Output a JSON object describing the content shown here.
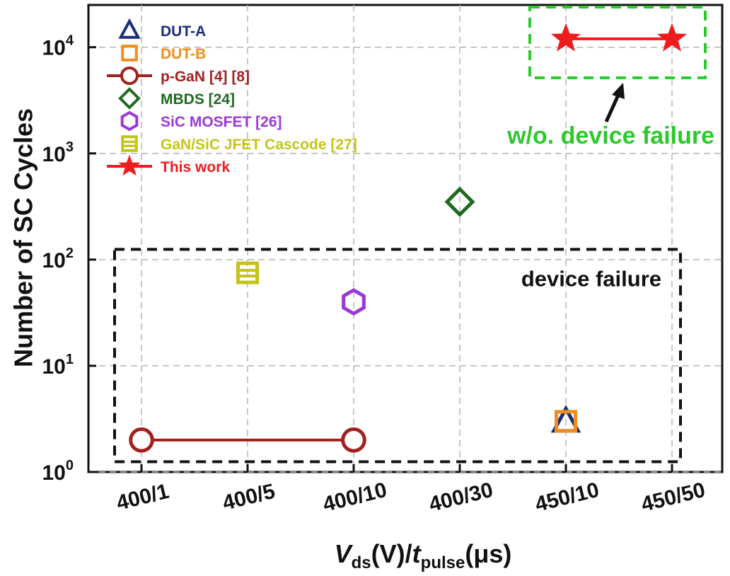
{
  "chart_data": {
    "type": "scatter",
    "ylabel": "Number of SC Cycles",
    "xlabel_parts": {
      "v": "V",
      "ds": "ds",
      "mid": "(V)/",
      "t": "t",
      "pulse": "pulse",
      "end": "(μs)"
    },
    "y_scale": "log",
    "ylim": [
      1,
      25000
    ],
    "y_ticks": [
      {
        "value": 1,
        "base": "10",
        "exp": "0"
      },
      {
        "value": 10,
        "base": "10",
        "exp": "1"
      },
      {
        "value": 100,
        "base": "10",
        "exp": "2"
      },
      {
        "value": 1000,
        "base": "10",
        "exp": "3"
      },
      {
        "value": 10000,
        "base": "10",
        "exp": "4"
      }
    ],
    "categories": [
      "400/1",
      "400/5",
      "400/10",
      "400/30",
      "450/10",
      "450/50"
    ],
    "grid": true,
    "legend_position": "top-left",
    "series": [
      {
        "name": "DUT-A",
        "marker": "triangle",
        "color": "#1a2f7a",
        "points": [
          {
            "x": "450/10",
            "y": 3
          }
        ],
        "line": false
      },
      {
        "name": "DUT-B",
        "marker": "square",
        "color": "#f28c1c",
        "points": [
          {
            "x": "450/10",
            "y": 3
          }
        ],
        "line": false
      },
      {
        "name": "p-GaN [4] [8]",
        "marker": "circle",
        "color": "#a3201f",
        "points": [
          {
            "x": "400/1",
            "y": 2
          },
          {
            "x": "400/10",
            "y": 2
          }
        ],
        "line": true
      },
      {
        "name": "MBDS [24]",
        "marker": "diamond",
        "color": "#1f6a1f",
        "points": [
          {
            "x": "400/30",
            "y": 350
          }
        ],
        "line": false
      },
      {
        "name": "SiC MOSFET [26]",
        "marker": "hexagon",
        "color": "#9a38d8",
        "points": [
          {
            "x": "400/10",
            "y": 40
          }
        ],
        "line": false
      },
      {
        "name": "GaN/SiC JFET Cascode [27]",
        "marker": "barsquare",
        "color": "#c4c41a",
        "points": [
          {
            "x": "400/5",
            "y": 75
          }
        ],
        "line": false
      },
      {
        "name": "This work",
        "marker": "star",
        "color": "#ee1c1c",
        "points": [
          {
            "x": "450/10",
            "y": 12000
          },
          {
            "x": "450/50",
            "y": 12000
          }
        ],
        "line": true
      }
    ],
    "annotations": {
      "failure_label": "device failure",
      "no_failure_label": "w/o. device failure",
      "failure_box_color": "#111111",
      "no_failure_box_color": "#2ec82e"
    }
  }
}
